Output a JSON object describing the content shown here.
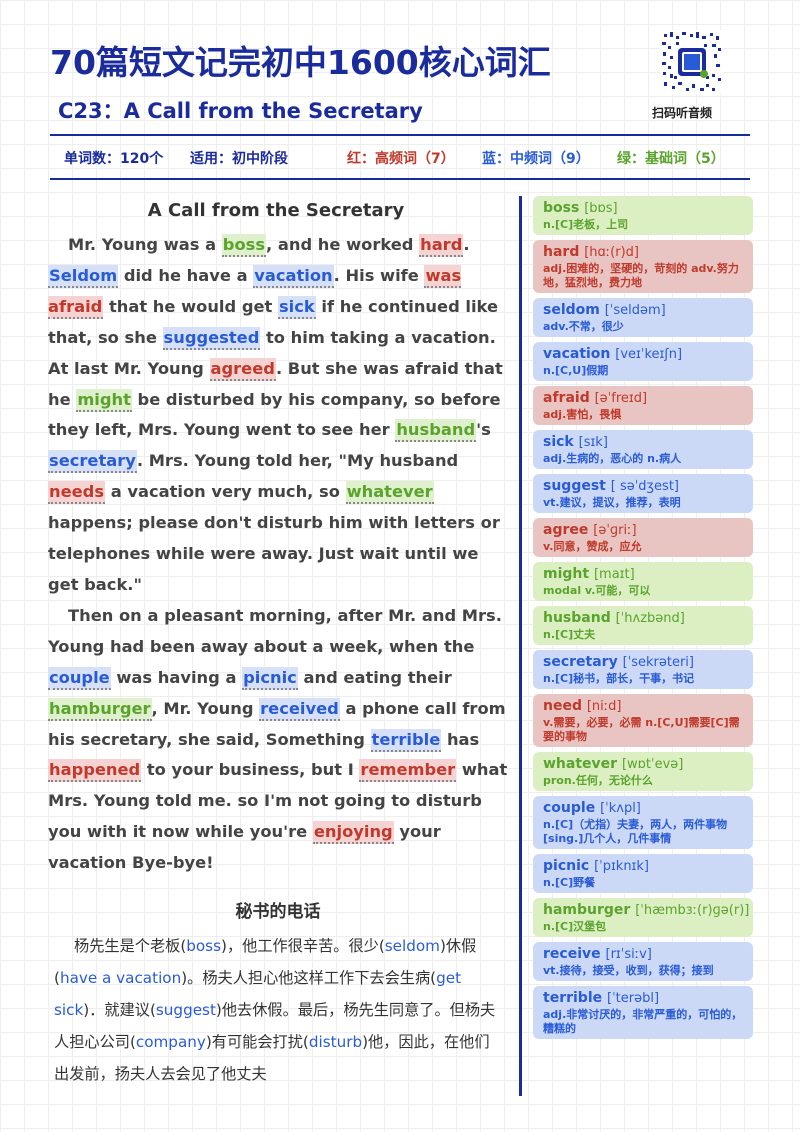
{
  "header": {
    "title": "70篇短文记完初中1600核心词汇",
    "subtitle": "C23：A Call from the Secretary",
    "qr_label": "扫码听音频",
    "qr_badge": "学而\n思小"
  },
  "stats": {
    "word_count": "单词数：120个",
    "level": "适用：初中阶段",
    "red": "红：高频词（7）",
    "blue": "蓝：中频词（9）",
    "green": "绿：基础词（5）"
  },
  "colors": {
    "primary": "#1a2b9c",
    "red": "#c0392b",
    "blue": "#2a5bd7",
    "green": "#5aa32c"
  },
  "story": {
    "title": "A Call from the Secretary",
    "paragraphs": [
      [
        {
          "t": "Mr. Young was a "
        },
        {
          "t": "boss",
          "c": "green"
        },
        {
          "t": ", and he worked "
        },
        {
          "t": "hard",
          "c": "red"
        },
        {
          "t": ". "
        },
        {
          "t": "Seldom",
          "c": "blue"
        },
        {
          "t": " did he have a "
        },
        {
          "t": "vacation",
          "c": "blue"
        },
        {
          "t": ". His wife "
        },
        {
          "t": "was afraid",
          "c": "red"
        },
        {
          "t": " that he would get "
        },
        {
          "t": "sick",
          "c": "blue"
        },
        {
          "t": " if he continued like that, so she "
        },
        {
          "t": "suggested",
          "c": "blue"
        },
        {
          "t": " to him taking a vacation. At last Mr. Young "
        },
        {
          "t": "agreed",
          "c": "red"
        },
        {
          "t": ". But she was afraid that he "
        },
        {
          "t": "might",
          "c": "green"
        },
        {
          "t": " be disturbed by his company, so before they left, Mrs. Young went to see her "
        },
        {
          "t": "husband",
          "c": "green"
        },
        {
          "t": "'s "
        },
        {
          "t": "secretary",
          "c": "blue"
        },
        {
          "t": ". Mrs. Young told her, \"My husband "
        },
        {
          "t": "needs",
          "c": "red"
        },
        {
          "t": " a vacation very much, so "
        },
        {
          "t": "whatever",
          "c": "green"
        },
        {
          "t": " happens; please don't disturb him with letters or telephones while were away. Just wait until we get back.\""
        }
      ],
      [
        {
          "t": "Then on a pleasant morning, after Mr. and Mrs. Young had been away about a week, when the "
        },
        {
          "t": "couple",
          "c": "blue"
        },
        {
          "t": " was having a "
        },
        {
          "t": "picnic",
          "c": "blue"
        },
        {
          "t": " and eating their "
        },
        {
          "t": "hamburger",
          "c": "green"
        },
        {
          "t": ", Mr. Young "
        },
        {
          "t": "received",
          "c": "blue"
        },
        {
          "t": " a phone call from his secretary, she said, Something "
        },
        {
          "t": "terrible",
          "c": "blue"
        },
        {
          "t": " has "
        },
        {
          "t": "happened",
          "c": "red"
        },
        {
          "t": " to your business, but I "
        },
        {
          "t": "remember",
          "c": "red"
        },
        {
          "t": " what Mrs. Young told me. so I'm not going to disturb you with it now while you're "
        },
        {
          "t": "enjoying",
          "c": "red"
        },
        {
          "t": " your vacation Bye-bye!"
        }
      ]
    ]
  },
  "translation": {
    "title": "秘书的电话",
    "segments": [
      {
        "t": "杨先生是个老板("
      },
      {
        "t": "boss",
        "k": 1
      },
      {
        "t": ")，他工作很辛苦。很少("
      },
      {
        "t": "seldom",
        "k": 1
      },
      {
        "t": ")休假("
      },
      {
        "t": "have a vacation",
        "k": 1
      },
      {
        "t": ")。杨夫人担心他这样工作下去会生病("
      },
      {
        "t": "get sick",
        "k": 1
      },
      {
        "t": ")．就建议("
      },
      {
        "t": "suggest",
        "k": 1
      },
      {
        "t": ")他去休假。最后，杨先生同意了。但杨夫人担心公司("
      },
      {
        "t": "company",
        "k": 1
      },
      {
        "t": ")有可能会打扰("
      },
      {
        "t": "disturb",
        "k": 1
      },
      {
        "t": ")他，因此，在他们出发前，扬夫人去会见了他丈夫"
      }
    ]
  },
  "vocab": [
    {
      "word": "boss",
      "phon": "[bɒs]",
      "def": "n.[C]老板，上司",
      "color": "green"
    },
    {
      "word": "hard",
      "phon": "[hɑː(r)d]",
      "def": "adj.困难的，坚硬的，苛刻的 adv.努力地，猛烈地，费力地",
      "color": "red"
    },
    {
      "word": "seldom",
      "phon": "[ˈseldəm]",
      "def": "adv.不常，很少",
      "color": "blue"
    },
    {
      "word": "vacation",
      "phon": "[veɪˈkeɪʃn]",
      "def": "n.[C,U]假期",
      "color": "blue"
    },
    {
      "word": "afraid",
      "phon": "[əˈfreɪd]",
      "def": "adj.害怕，畏惧",
      "color": "red"
    },
    {
      "word": "sick",
      "phon": "[sɪk]",
      "def": "adj.生病的，恶心的 n.病人",
      "color": "blue"
    },
    {
      "word": "suggest",
      "phon": "[ səˈdʒest]",
      "def": "vt.建议，提议，推荐，表明",
      "color": "blue"
    },
    {
      "word": "agree",
      "phon": "[əˈɡriː]",
      "def": "v.同意，赞成，应允",
      "color": "red"
    },
    {
      "word": "might",
      "phon": "[maɪt]",
      "def": "modal v.可能，可以",
      "color": "green"
    },
    {
      "word": "husband",
      "phon": "[ˈhʌzbənd]",
      "def": "n.[C]丈夫",
      "color": "green"
    },
    {
      "word": "secretary",
      "phon": "[ˈsekrəteri]",
      "def": "n.[C]秘书，部长，干事，书记",
      "color": "blue"
    },
    {
      "word": "need",
      "phon": "[niːd]",
      "def": "v.需要，必要，必需 n.[C,U]需要[C]需要的事物",
      "color": "red"
    },
    {
      "word": "whatever",
      "phon": "[wɒtˈevə]",
      "def": "pron.任何，无论什么",
      "color": "green"
    },
    {
      "word": "couple",
      "phon": "[ˈkʌpl]",
      "def": "n.[C]（尤指）夫妻，两人，两件事物[sing.]几个人，几件事情",
      "color": "blue"
    },
    {
      "word": "picnic",
      "phon": "[ˈpɪknɪk]",
      "def": "n.[C]野餐",
      "color": "blue"
    },
    {
      "word": "hamburger",
      "phon": "[ˈhæmbɜː(r)ɡə(r)]",
      "def": "n.[C]汉堡包",
      "color": "green"
    },
    {
      "word": "receive",
      "phon": "[rɪˈsiːv]",
      "def": "vt.接待，接受，收到，获得；接到",
      "color": "blue"
    },
    {
      "word": "terrible",
      "phon": "[ˈterəbl]",
      "def": "adj.非常讨厌的，非常严重的，可怕的，糟糕的",
      "color": "blue"
    }
  ]
}
